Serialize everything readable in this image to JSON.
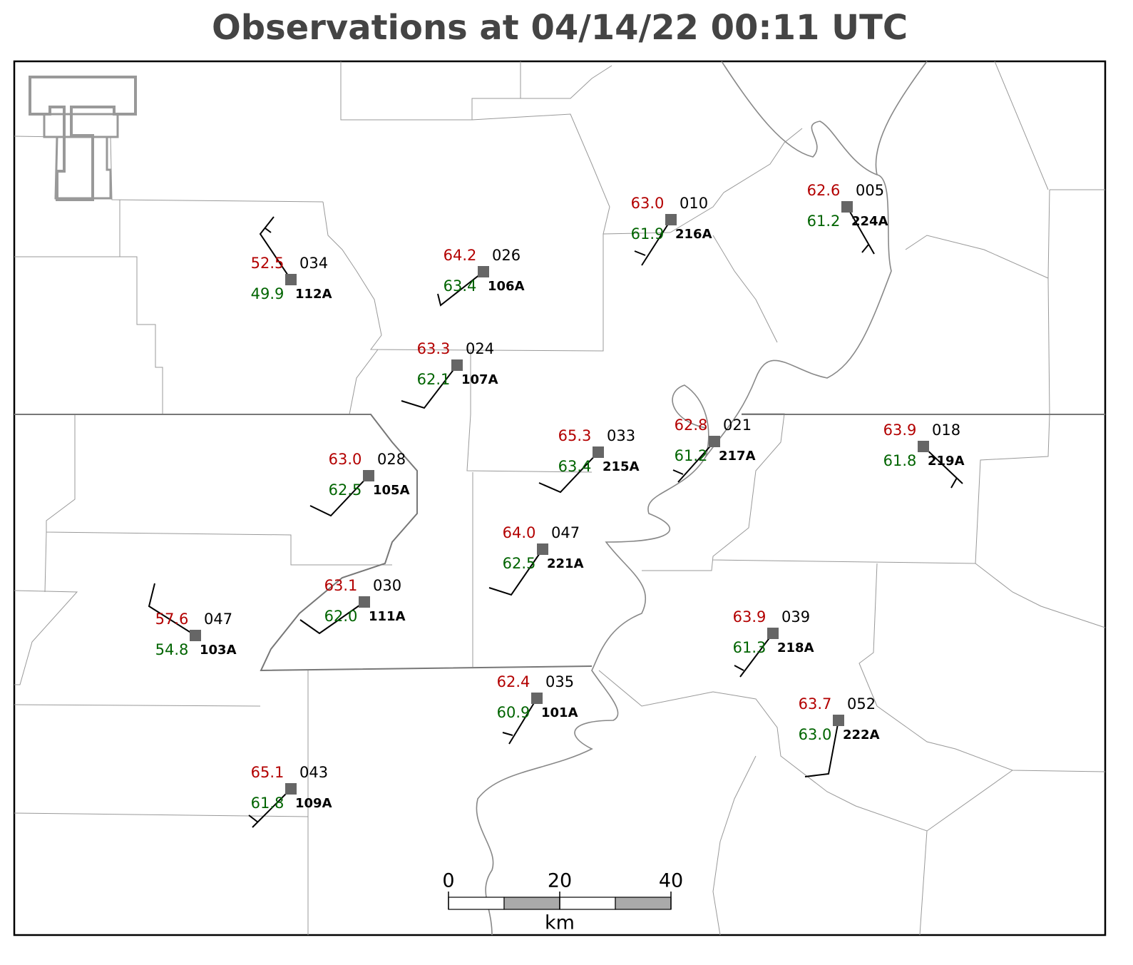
{
  "title": "Observations at 04/14/22 00:11 UTC",
  "stations": [
    {
      "id": "112A",
      "temperature": "52.5",
      "dewpoint": "49.9",
      "pressure": "034"
    },
    {
      "id": "106A",
      "temperature": "64.2",
      "dewpoint": "63.4",
      "pressure": "026"
    },
    {
      "id": "107A",
      "temperature": "63.3",
      "dewpoint": "62.1",
      "pressure": "024"
    },
    {
      "id": "216A",
      "temperature": "63.0",
      "dewpoint": "61.9",
      "pressure": "010"
    },
    {
      "id": "224A",
      "temperature": "62.6",
      "dewpoint": "61.2",
      "pressure": "005"
    },
    {
      "id": "215A",
      "temperature": "65.3",
      "dewpoint": "63.4",
      "pressure": "033"
    },
    {
      "id": "217A",
      "temperature": "62.8",
      "dewpoint": "61.2",
      "pressure": "021"
    },
    {
      "id": "219A",
      "temperature": "63.9",
      "dewpoint": "61.8",
      "pressure": "018"
    },
    {
      "id": "105A",
      "temperature": "63.0",
      "dewpoint": "62.5",
      "pressure": "028"
    },
    {
      "id": "221A",
      "temperature": "64.0",
      "dewpoint": "62.5",
      "pressure": "047"
    },
    {
      "id": "103A",
      "temperature": "57.6",
      "dewpoint": "54.8",
      "pressure": "047"
    },
    {
      "id": "111A",
      "temperature": "63.1",
      "dewpoint": "62.0",
      "pressure": "030"
    },
    {
      "id": "218A",
      "temperature": "63.9",
      "dewpoint": "61.3",
      "pressure": "039"
    },
    {
      "id": "101A",
      "temperature": "62.4",
      "dewpoint": "60.9",
      "pressure": "035"
    },
    {
      "id": "222A",
      "temperature": "63.7",
      "dewpoint": "63.0",
      "pressure": "052"
    },
    {
      "id": "109A",
      "temperature": "65.1",
      "dewpoint": "61.8",
      "pressure": "043"
    }
  ],
  "scale_bar": {
    "ticks": [
      0,
      20,
      40
    ],
    "unit": "km"
  }
}
